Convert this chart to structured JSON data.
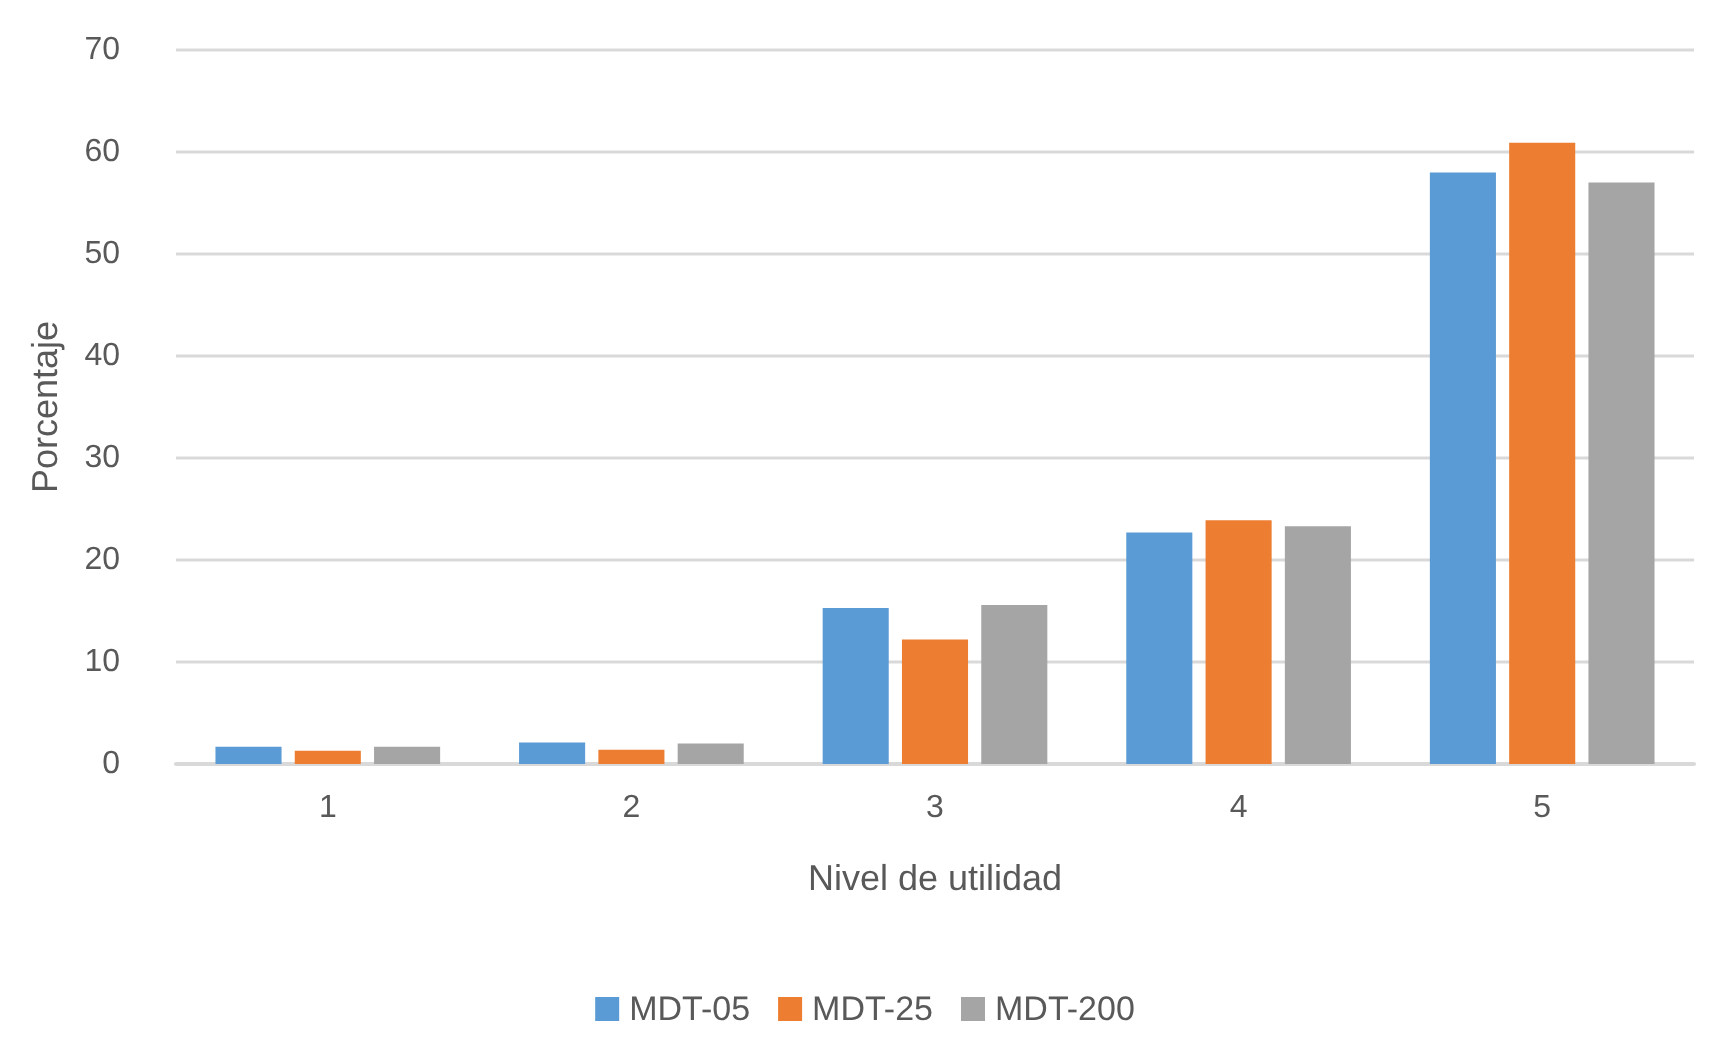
{
  "chart_data": {
    "type": "bar",
    "xlabel": "Nivel de utilidad",
    "ylabel": "Porcentaje",
    "categories": [
      "1",
      "2",
      "3",
      "4",
      "5"
    ],
    "series": [
      {
        "name": "MDT-05",
        "color": "#5b9bd5",
        "values": [
          1.7,
          2.1,
          15.3,
          22.7,
          58.0
        ]
      },
      {
        "name": "MDT-25",
        "color": "#ed7d31",
        "values": [
          1.3,
          1.4,
          12.2,
          23.9,
          60.9
        ]
      },
      {
        "name": "MDT-200",
        "color": "#a5a5a5",
        "values": [
          1.7,
          2.0,
          15.6,
          23.3,
          57.0
        ]
      }
    ],
    "ylim": [
      0,
      70
    ],
    "yticks": [
      0,
      10,
      20,
      30,
      40,
      50,
      60,
      70
    ],
    "grid": "y",
    "legend": "bottom"
  }
}
